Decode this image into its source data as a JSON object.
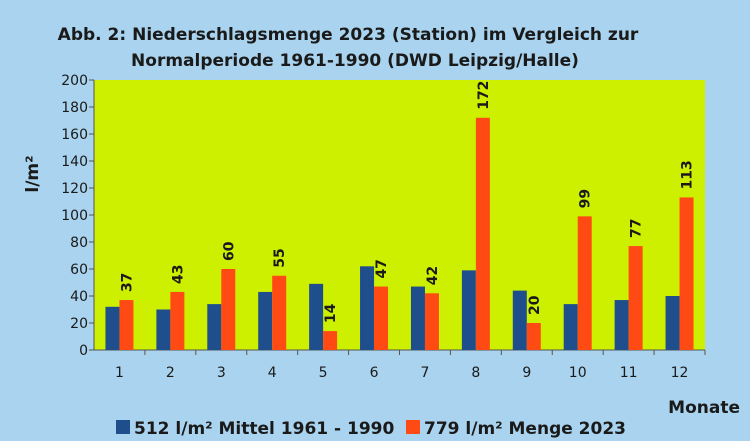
{
  "chart_data": {
    "type": "bar",
    "title_line1": "Abb. 2: Niederschlagsmenge 2023 (Station) im Vergleich zur",
    "title_line2": "Normalperiode 1961-1990 (DWD Leipzig/Halle)",
    "ylabel": "l/m²",
    "xlabel": "Monate",
    "categories": [
      "1",
      "2",
      "3",
      "4",
      "5",
      "6",
      "7",
      "8",
      "9",
      "10",
      "11",
      "12"
    ],
    "ylim": [
      0,
      200
    ],
    "ytick_step": 20,
    "grid": false,
    "legend_position": "bottom",
    "series": [
      {
        "name": "512 l/m² Mittel 1961 - 1990",
        "color": "#1f4e8c",
        "values": [
          32,
          30,
          34,
          43,
          49,
          62,
          47,
          59,
          44,
          34,
          37,
          40
        ],
        "labels_shown": false
      },
      {
        "name": "779 l/m² Menge 2023",
        "color": "#ff4a14",
        "values": [
          37,
          43,
          60,
          55,
          14,
          47,
          42,
          172,
          20,
          99,
          77,
          113
        ],
        "labels_shown": true
      }
    ],
    "plot_background": "#ccf000",
    "page_background": "#a9d3ee"
  }
}
